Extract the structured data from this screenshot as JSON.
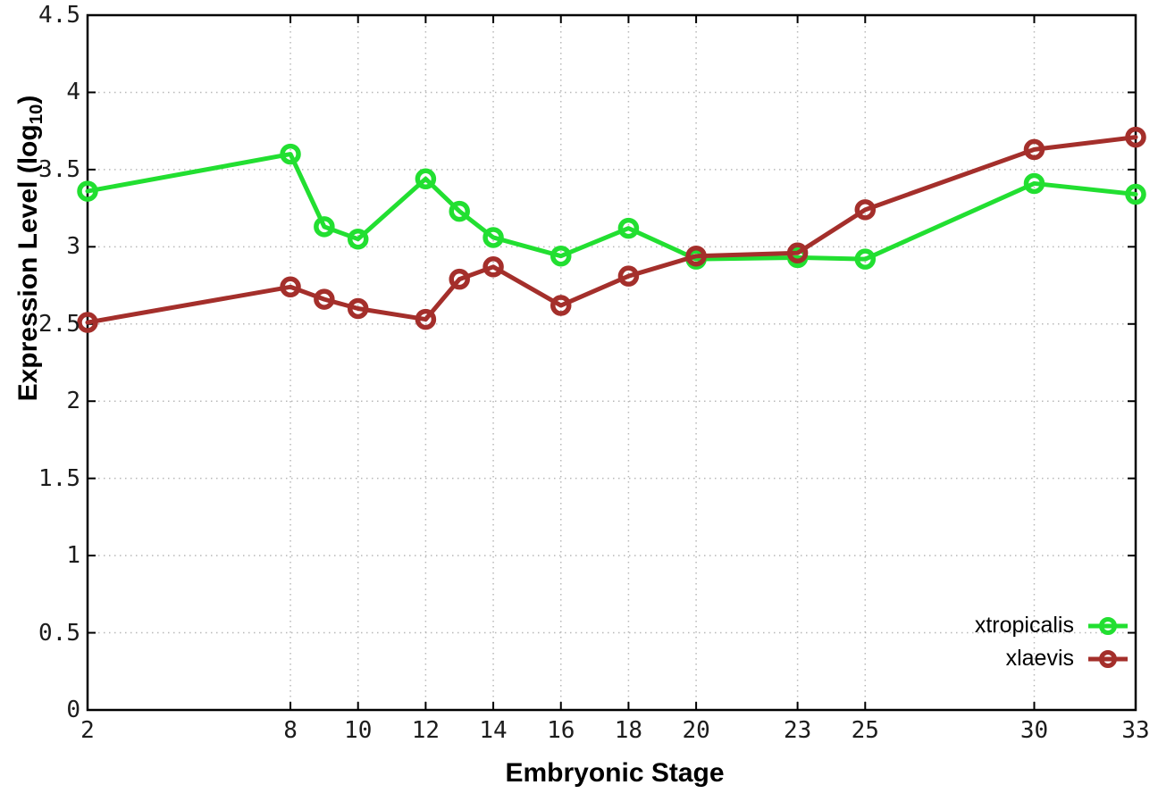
{
  "chart_data": {
    "type": "line",
    "title": "",
    "xlabel": "Embryonic Stage",
    "ylabel": "Expression Level (log10)",
    "ylabel_parts": {
      "pre": "Expression Level (log",
      "sub": "10",
      "post": ")"
    },
    "x": [
      2,
      8,
      9,
      10,
      12,
      13,
      14,
      16,
      18,
      20,
      23,
      25,
      30,
      33
    ],
    "xlim": [
      2,
      33
    ],
    "x_ticks": [
      2,
      8,
      10,
      12,
      14,
      16,
      18,
      20,
      23,
      25,
      30,
      33
    ],
    "x_tick_labels": [
      "2",
      "8",
      "10",
      "12",
      "14",
      "16",
      "18",
      "20",
      "23",
      "25",
      "30",
      "33"
    ],
    "ylim": [
      0,
      4.5
    ],
    "y_ticks": [
      0,
      0.5,
      1,
      1.5,
      2,
      2.5,
      3,
      3.5,
      4,
      4.5
    ],
    "y_tick_labels": [
      "0",
      "0.5",
      "1",
      "1.5",
      "2",
      "2.5",
      "3",
      "3.5",
      "4",
      "4.5"
    ],
    "grid": true,
    "legend_position": "inside-bottom-right",
    "marker": "open-circle",
    "series": [
      {
        "name": "xtropicalis",
        "color": "#22df31",
        "values": [
          3.36,
          3.6,
          3.13,
          3.05,
          3.44,
          3.23,
          3.06,
          2.94,
          3.12,
          2.92,
          2.93,
          2.92,
          3.41,
          3.34
        ]
      },
      {
        "name": "xlaevis",
        "color": "#a42f2b",
        "values": [
          2.51,
          2.74,
          2.66,
          2.6,
          2.53,
          2.79,
          2.87,
          2.62,
          2.81,
          2.94,
          2.96,
          3.24,
          3.63,
          3.71
        ]
      }
    ]
  },
  "colors": {
    "background": "#ffffff",
    "axis": "#000000",
    "grid": "#b8b8b8",
    "tick_label": "#1c1c1c"
  }
}
